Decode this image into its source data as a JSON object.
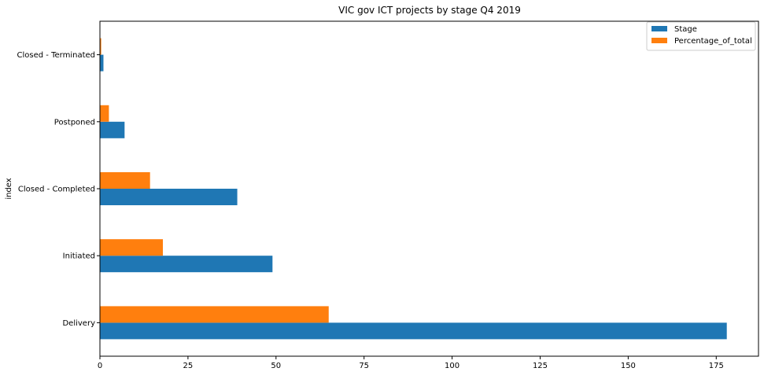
{
  "chart_data": {
    "type": "bar",
    "orientation": "horizontal",
    "title": "VIC gov ICT projects by stage Q4 2019",
    "xlabel": "",
    "ylabel": "index",
    "categories": [
      "Delivery",
      "Initiated",
      "Closed - Completed",
      "Postponed",
      "Closed - Terminated"
    ],
    "series": [
      {
        "name": "Stage",
        "color": "#1f77b4",
        "values": [
          178,
          49,
          39,
          7,
          1
        ]
      },
      {
        "name": "Percentage_of_total",
        "color": "#ff7f0e",
        "values": [
          64.96,
          17.88,
          14.23,
          2.55,
          0.36
        ]
      }
    ],
    "xlim": [
      0,
      187
    ],
    "xticks": [
      0,
      25,
      50,
      75,
      100,
      125,
      150,
      175
    ],
    "grid": false,
    "legend_position": "top-right"
  }
}
